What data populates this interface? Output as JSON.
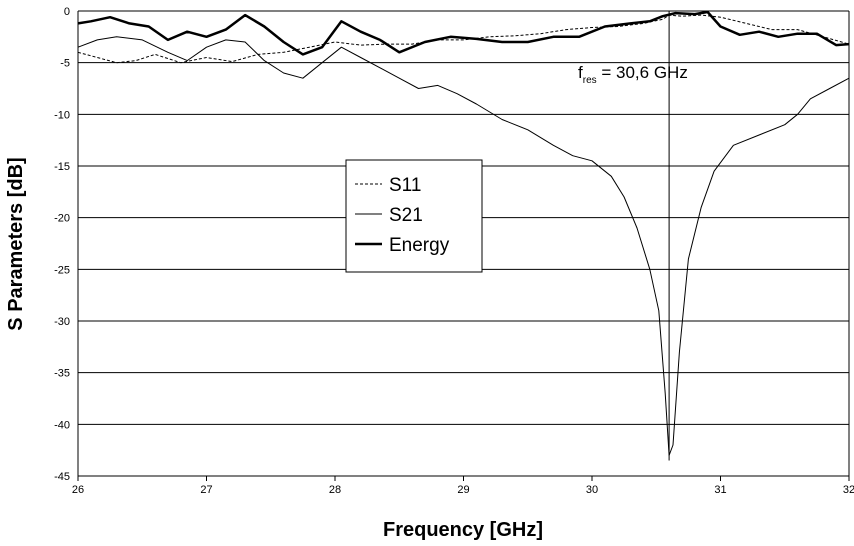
{
  "chart_data": {
    "type": "line",
    "title": "",
    "xlabel": "Frequency [GHz]",
    "ylabel": "S Parameters [dB]",
    "xlim": [
      26,
      32
    ],
    "ylim": [
      -45,
      0
    ],
    "x_ticks": [
      26,
      27,
      28,
      29,
      30,
      31,
      32
    ],
    "y_ticks": [
      0,
      -5,
      -10,
      -15,
      -20,
      -25,
      -30,
      -35,
      -40,
      -45
    ],
    "grid": "horizontal",
    "legend_position": "center-left",
    "series": [
      {
        "name": "S11",
        "style": "dashed",
        "stroke_width": 1,
        "x": [
          26.0,
          26.15,
          26.3,
          26.45,
          26.6,
          26.8,
          27.0,
          27.2,
          27.4,
          27.6,
          27.8,
          28.0,
          28.2,
          28.4,
          28.6,
          28.8,
          29.0,
          29.2,
          29.4,
          29.6,
          29.8,
          30.0,
          30.2,
          30.4,
          30.55,
          30.6,
          30.7,
          30.85,
          31.0,
          31.2,
          31.4,
          31.6,
          31.8,
          32.0
        ],
        "values": [
          -4.0,
          -4.5,
          -5.0,
          -4.8,
          -4.2,
          -5.0,
          -4.5,
          -4.9,
          -4.2,
          -4.0,
          -3.5,
          -3.0,
          -3.3,
          -3.2,
          -3.2,
          -2.8,
          -2.8,
          -2.5,
          -2.4,
          -2.2,
          -1.8,
          -1.6,
          -1.5,
          -1.2,
          -0.8,
          -0.4,
          -0.5,
          -0.4,
          -0.6,
          -1.2,
          -1.8,
          -1.8,
          -2.5,
          -3.2
        ]
      },
      {
        "name": "S21",
        "style": "solid",
        "stroke_width": 1,
        "x": [
          26.0,
          26.15,
          26.3,
          26.5,
          26.7,
          26.85,
          27.0,
          27.15,
          27.3,
          27.45,
          27.6,
          27.75,
          27.9,
          28.05,
          28.2,
          28.35,
          28.5,
          28.65,
          28.8,
          28.95,
          29.1,
          29.3,
          29.5,
          29.7,
          29.85,
          30.0,
          30.15,
          30.25,
          30.35,
          30.45,
          30.52,
          30.57,
          30.6,
          30.63,
          30.68,
          30.75,
          30.85,
          30.95,
          31.1,
          31.3,
          31.5,
          31.6,
          31.7,
          31.85,
          32.0
        ],
        "values": [
          -3.5,
          -2.8,
          -2.5,
          -2.8,
          -4.0,
          -4.8,
          -3.5,
          -2.8,
          -3.0,
          -4.8,
          -6.0,
          -6.5,
          -5.0,
          -3.5,
          -4.5,
          -5.5,
          -6.5,
          -7.5,
          -7.2,
          -8.0,
          -9.0,
          -10.5,
          -11.5,
          -13.0,
          -14.0,
          -14.5,
          -16.0,
          -18.0,
          -21.0,
          -25.0,
          -29.0,
          -37.0,
          -43.0,
          -42.0,
          -33.0,
          -24.0,
          -19.0,
          -15.5,
          -13.0,
          -12.0,
          -11.0,
          -10.0,
          -8.5,
          -7.5,
          -6.5
        ]
      },
      {
        "name": "Energy",
        "style": "solid",
        "stroke_width": 2.5,
        "x": [
          26.0,
          26.1,
          26.25,
          26.4,
          26.55,
          26.7,
          26.85,
          27.0,
          27.15,
          27.3,
          27.45,
          27.6,
          27.75,
          27.9,
          28.05,
          28.2,
          28.35,
          28.5,
          28.7,
          28.9,
          29.1,
          29.3,
          29.5,
          29.7,
          29.9,
          30.1,
          30.3,
          30.45,
          30.55,
          30.65,
          30.8,
          30.9,
          31.0,
          31.15,
          31.3,
          31.45,
          31.6,
          31.75,
          31.9,
          32.0
        ],
        "values": [
          -1.2,
          -1.0,
          -0.6,
          -1.2,
          -1.5,
          -2.8,
          -2.0,
          -2.5,
          -1.8,
          -0.4,
          -1.5,
          -3.0,
          -4.2,
          -3.5,
          -1.0,
          -2.0,
          -2.8,
          -4.0,
          -3.0,
          -2.5,
          -2.7,
          -3.0,
          -3.0,
          -2.5,
          -2.5,
          -1.5,
          -1.2,
          -1.0,
          -0.5,
          -0.2,
          -0.3,
          -0.1,
          -1.5,
          -2.3,
          -2.0,
          -2.5,
          -2.2,
          -2.2,
          -3.3,
          -3.2
        ]
      }
    ],
    "annotations": [
      {
        "x": 30.6,
        "text_main": "f",
        "text_sub": "res",
        "text_rest": " = 30,6 GHz"
      }
    ]
  }
}
